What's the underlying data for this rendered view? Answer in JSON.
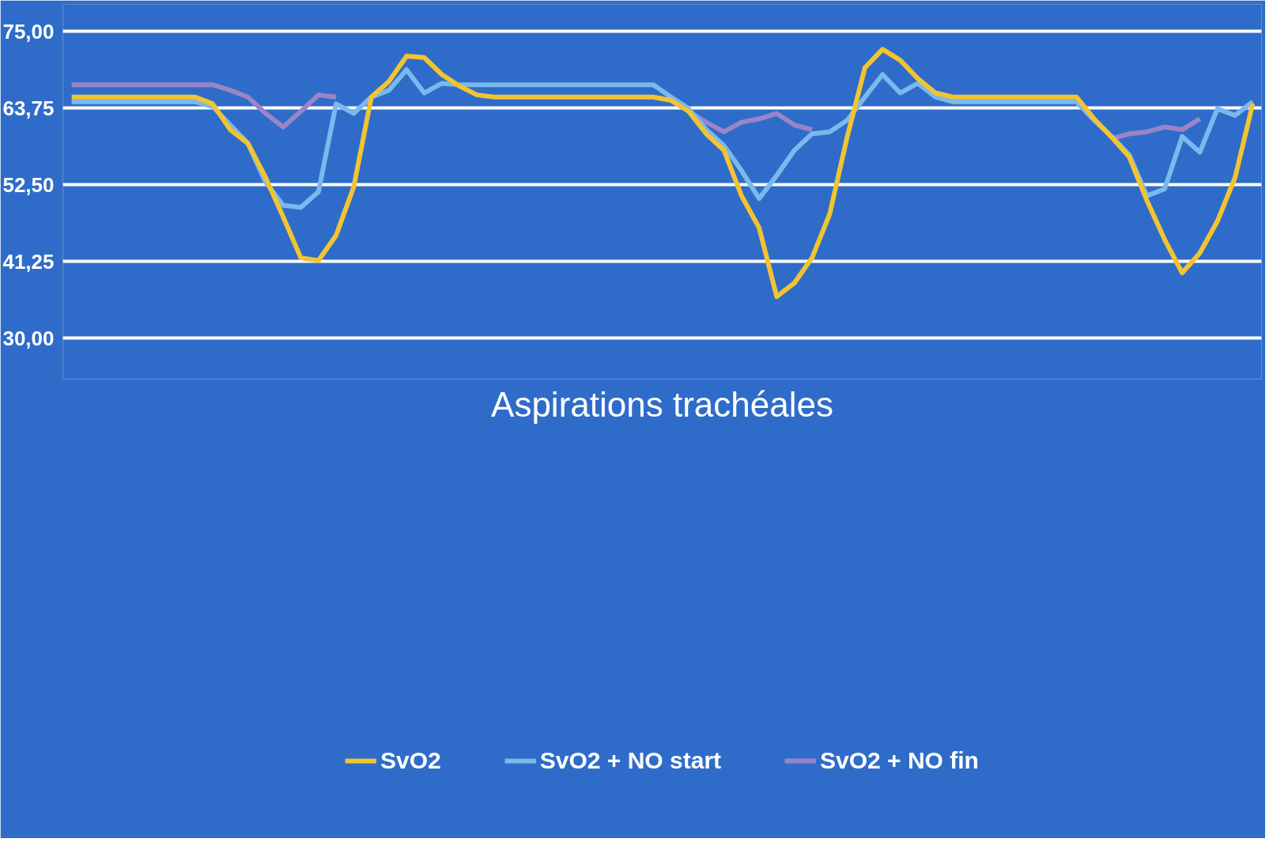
{
  "chart_data": {
    "type": "line",
    "categories": [
      null,
      null,
      null,
      null,
      null,
      null,
      null,
      null,
      null,
      null,
      null,
      null,
      null,
      null,
      null,
      null,
      null,
      null,
      null,
      null,
      null,
      null,
      null,
      null,
      null,
      null,
      null,
      null,
      null,
      null,
      null,
      null,
      null,
      null,
      null,
      null,
      null,
      null,
      null,
      null,
      null,
      null,
      null,
      null,
      null,
      null,
      null,
      null,
      null,
      null,
      null,
      null,
      null,
      null,
      null,
      null,
      null,
      null,
      null,
      null,
      null,
      null,
      null,
      null,
      null,
      null,
      null,
      null
    ],
    "series": [
      {
        "name": "SvO2",
        "color": "#f2c431",
        "values": [
          65.4,
          65.4,
          65.4,
          65.4,
          65.4,
          65.4,
          65.4,
          65.4,
          64.4,
          60.6,
          58.6,
          53.6,
          47.8,
          41.8,
          41.4,
          45.1,
          52.2,
          65.4,
          67.7,
          71.4,
          71.2,
          68.7,
          67.0,
          65.7,
          65.4,
          65.4,
          65.4,
          65.4,
          65.4,
          65.4,
          65.4,
          65.4,
          65.4,
          65.4,
          64.9,
          63.3,
          60.0,
          57.6,
          50.9,
          46.2,
          36.1,
          38.1,
          41.8,
          48.2,
          59.6,
          69.7,
          72.4,
          70.8,
          68.1,
          66.0,
          65.4,
          65.4,
          65.4,
          65.4,
          65.4,
          65.4,
          65.4,
          65.4,
          62.2,
          59.5,
          56.6,
          50.2,
          44.5,
          39.6,
          42.5,
          47.2,
          53.6,
          64.4
        ]
      },
      {
        "name": "SvO2 + NO start",
        "color": "#7ab8ee",
        "values": [
          64.7,
          64.7,
          64.7,
          64.7,
          64.7,
          64.7,
          64.7,
          64.7,
          64.0,
          61.3,
          58.6,
          52.9,
          49.5,
          49.2,
          51.5,
          64.4,
          63.0,
          65.4,
          66.4,
          69.4,
          66.0,
          67.4,
          67.2,
          67.2,
          67.2,
          67.2,
          67.2,
          67.2,
          67.2,
          67.2,
          67.2,
          67.2,
          67.2,
          67.2,
          65.4,
          63.7,
          60.6,
          58.3,
          54.6,
          50.5,
          53.9,
          57.6,
          60.0,
          60.3,
          62.0,
          65.4,
          68.7,
          66.0,
          67.4,
          65.4,
          64.7,
          64.7,
          64.7,
          64.7,
          64.7,
          64.7,
          64.7,
          64.7,
          62.0,
          59.6,
          56.9,
          50.9,
          51.9,
          59.6,
          57.3,
          63.7,
          62.7,
          64.7
        ]
      },
      {
        "name": "SvO2 + NO fin",
        "color": "#9a84c8",
        "values": [
          67.2,
          67.2,
          67.2,
          67.2,
          67.2,
          67.2,
          67.2,
          67.2,
          67.2,
          66.4,
          65.4,
          63.0,
          61.0,
          63.3,
          65.7,
          65.4,
          null,
          null,
          null,
          null,
          null,
          null,
          null,
          null,
          null,
          null,
          null,
          null,
          null,
          null,
          null,
          null,
          null,
          null,
          null,
          63.3,
          61.7,
          60.3,
          61.7,
          62.2,
          63.0,
          61.3,
          60.6,
          null,
          null,
          null,
          null,
          null,
          null,
          null,
          null,
          null,
          null,
          null,
          null,
          null,
          null,
          null,
          null,
          59.3,
          60.0,
          60.3,
          61.0,
          60.6,
          62.2,
          null,
          null,
          null
        ]
      }
    ],
    "ylim": [
      24,
      79
    ],
    "yticks": [
      {
        "value": 30,
        "label": "30,00"
      },
      {
        "value": 41.25,
        "label": "41,25"
      },
      {
        "value": 52.5,
        "label": "52,50"
      },
      {
        "value": 63.75,
        "label": "63,75"
      },
      {
        "value": 75,
        "label": "75,00"
      }
    ],
    "tick_labels": "y",
    "grid": "y",
    "legend": "bottom",
    "annotations": [
      "Aspirations trachéales"
    ]
  }
}
